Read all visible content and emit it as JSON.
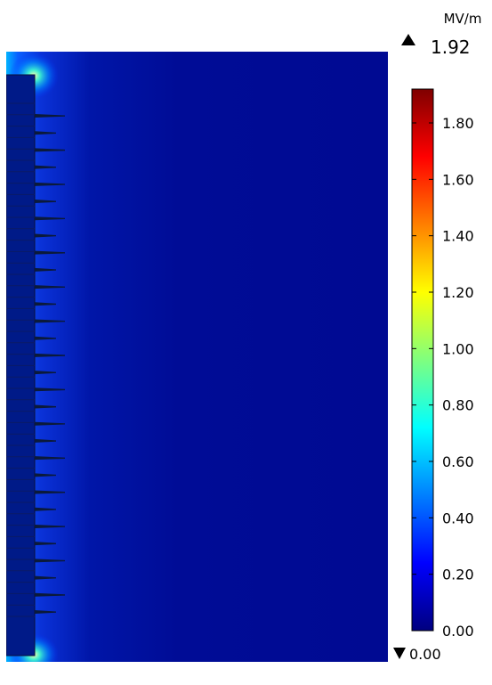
{
  "chart_data": {
    "type": "heatmap",
    "title": "",
    "unit": "MV/m",
    "max_label": "1.92",
    "min_label": "0.00",
    "range": [
      0.0,
      1.92
    ],
    "colorbar_ticks": [
      "0.00",
      "0.20",
      "0.40",
      "0.60",
      "0.80",
      "1.00",
      "1.20",
      "1.40",
      "1.60",
      "1.80"
    ],
    "colormap": "rainbow",
    "background_value": 0.03,
    "colors": {
      "colormap_stops": [
        "#00007f",
        "#0000ff",
        "#00ffff",
        "#7fff7f",
        "#ffff00",
        "#ff7f00",
        "#ff0000",
        "#7f0000"
      ],
      "field_background": "#000c96",
      "structure": "#001a88",
      "shed": "#0b1a3a"
    }
  }
}
